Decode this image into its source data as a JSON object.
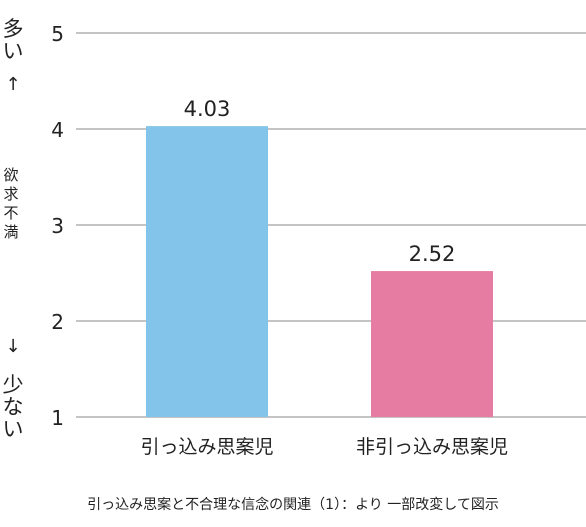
{
  "chart_data": {
    "type": "bar",
    "categories": [
      "引っ込み思案児",
      "非引っ込み思案児"
    ],
    "values": [
      4.03,
      2.52
    ],
    "value_labels": [
      "4.03",
      "2.52"
    ],
    "title": "",
    "xlabel": "",
    "ylabel": "欲求不満",
    "ylabel_high": "多い",
    "ylabel_low": "少ない",
    "arrow_up": "↑",
    "arrow_down": "↓",
    "ylim": [
      1,
      5
    ],
    "yticks": [
      1,
      2,
      3,
      4,
      5
    ],
    "grid": true,
    "legend": "none",
    "colors": {
      "bars": [
        "#82c4ea",
        "#e67ca2"
      ],
      "high_label": "#5aa9dc",
      "low_label": "#e2739c",
      "grid": "#888888"
    }
  },
  "caption": "引っ込み思案と不合理な信念の関連（1）：より 一部改変して図示"
}
